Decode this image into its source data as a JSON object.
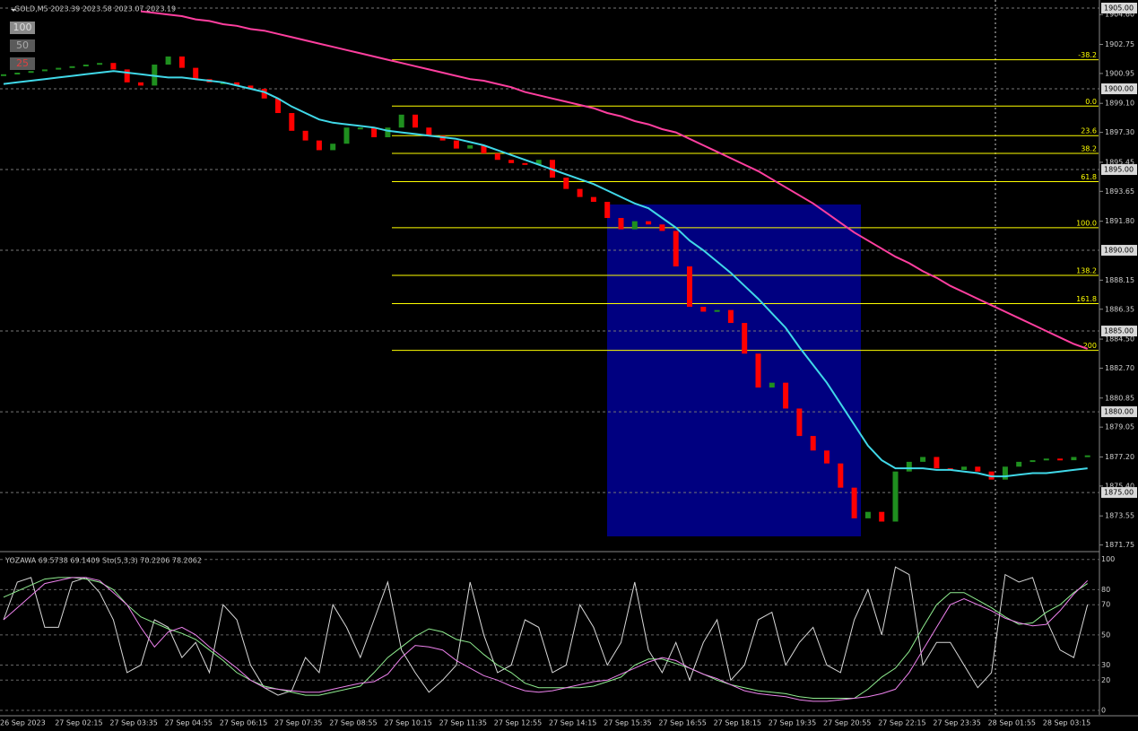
{
  "chart_data": [
    {
      "type": "price",
      "title": "GOLD,M5  2023.39 2023.58 2023.07 2023.19",
      "scale_buttons": [
        "100",
        "50",
        "25"
      ],
      "categories": [
        "26 Sep 2023",
        null,
        null,
        null,
        "27 Sep 02:15",
        null,
        null,
        null,
        "27 Sep 03:35",
        null,
        null,
        null,
        "27 Sep 04:55",
        null,
        null,
        null,
        "27 Sep 06:15",
        null,
        null,
        null,
        "27 Sep 07:35",
        null,
        null,
        null,
        "27 Sep 08:55",
        null,
        null,
        null,
        "27 Sep 10:15",
        null,
        null,
        null,
        "27 Sep 11:35",
        null,
        null,
        null,
        "27 Sep 12:55",
        null,
        null,
        null,
        "27 Sep 14:15",
        null,
        null,
        null,
        "27 Sep 15:35",
        null,
        null,
        null,
        "27 Sep 16:55",
        null,
        null,
        null,
        "27 Sep 18:15",
        null,
        null,
        null,
        "27 Sep 19:35",
        null,
        null,
        null,
        "27 Sep 20:55",
        null,
        null,
        null,
        "27 Sep 22:15",
        null,
        null,
        null,
        "27 Sep 23:35",
        null,
        null,
        null,
        "28 Sep 01:55",
        null,
        null,
        null,
        "28 Sep 03:15",
        null,
        null,
        null
      ],
      "ylim": [
        1871.45,
        1905.5
      ],
      "yticks": [
        {
          "value": 1904.6,
          "label": "1904.60"
        },
        {
          "value": 1902.75,
          "label": "1902.75"
        },
        {
          "value": 1900.95,
          "label": "1900.95"
        },
        {
          "value": 1899.1,
          "label": "1899.10"
        },
        {
          "value": 1897.3,
          "label": "1897.30"
        },
        {
          "value": 1895.45,
          "label": "1895.45"
        },
        {
          "value": 1893.65,
          "label": "1893.65"
        },
        {
          "value": 1891.8,
          "label": "1891.80"
        },
        {
          "value": 1888.15,
          "label": "1888.15"
        },
        {
          "value": 1886.35,
          "label": "1886.35"
        },
        {
          "value": 1884.5,
          "label": "1884.50"
        },
        {
          "value": 1882.7,
          "label": "1882.70"
        },
        {
          "value": 1880.85,
          "label": "1880.85"
        },
        {
          "value": 1879.05,
          "label": "1879.05"
        },
        {
          "value": 1877.2,
          "label": "1877.20"
        },
        {
          "value": 1875.4,
          "label": "1875.40"
        },
        {
          "value": 1873.55,
          "label": "1873.55"
        },
        {
          "value": 1871.75,
          "label": "1871.75"
        }
      ],
      "level_lines": [
        {
          "value": 1905,
          "label": "1905.00"
        },
        {
          "value": 1900,
          "label": "1900.00"
        },
        {
          "value": 1895,
          "label": "1895.00"
        },
        {
          "value": 1890,
          "label": "1890.00"
        },
        {
          "value": 1885,
          "label": "1885.00"
        },
        {
          "value": 1880,
          "label": "1880.00"
        },
        {
          "value": 1875,
          "label": "1875.00"
        }
      ],
      "fib_levels": [
        {
          "ratio_label": "-38.2",
          "price": 1901.8
        },
        {
          "ratio_label": "0.0",
          "price": 1898.93
        },
        {
          "ratio_label": "23.6",
          "price": 1897.1
        },
        {
          "ratio_label": "38.2",
          "price": 1896.0
        },
        {
          "ratio_label": "61.8",
          "price": 1894.25
        },
        {
          "ratio_label": "100.0",
          "price": 1891.4
        },
        {
          "ratio_label": "138.2",
          "price": 1888.45
        },
        {
          "ratio_label": "161.8",
          "price": 1886.7
        },
        {
          "ratio_label": "200",
          "price": 1883.8
        }
      ],
      "fib_color": "#ffff00",
      "series": [
        {
          "style": "bars",
          "up_color": "#1f8f1f",
          "down_color": "#ff0000",
          "values": [
            1900.9,
            1901.0,
            1901.1,
            1901.2,
            1901.3,
            1901.4,
            1901.5,
            1901.6,
            1901.2,
            1900.4,
            1900.2,
            1901.5,
            1902.0,
            1901.3,
            1900.6,
            1900.4,
            1900.4,
            1900.2,
            1900.0,
            1899.4,
            1898.5,
            1897.4,
            1896.8,
            1896.2,
            1896.6,
            1897.6,
            1897.6,
            1897.0,
            1897.6,
            1898.4,
            1897.6,
            1897.1,
            1896.8,
            1896.3,
            1896.5,
            1896.0,
            1895.6,
            1895.4,
            1895.3,
            1895.6,
            1894.5,
            1893.8,
            1893.3,
            1893.0,
            1892.0,
            1891.3,
            1891.8,
            1891.6,
            1891.2,
            1889.0,
            1886.5,
            1886.2,
            1886.3,
            1885.5,
            1883.6,
            1881.5,
            1881.8,
            1880.2,
            1878.5,
            1877.6,
            1876.8,
            1875.3,
            1873.4,
            1873.8,
            1873.2,
            1876.3,
            1876.9,
            1877.2,
            1876.5,
            1876.4,
            1876.6,
            1876.3,
            1875.8,
            1876.6,
            1876.9,
            1877.0,
            1877.1,
            1877.0,
            1877.2,
            1877.3
          ]
        },
        {
          "style": "line",
          "color": "#40d8e8",
          "values": [
            1900.3,
            1900.4,
            1900.5,
            1900.6,
            1900.7,
            1900.8,
            1900.9,
            1901.0,
            1901.1,
            1901.0,
            1900.9,
            1900.8,
            1900.7,
            1900.7,
            1900.6,
            1900.5,
            1900.4,
            1900.2,
            1900.0,
            1899.8,
            1899.4,
            1898.9,
            1898.5,
            1898.1,
            1897.9,
            1897.8,
            1897.7,
            1897.6,
            1897.4,
            1897.3,
            1897.2,
            1897.1,
            1897.0,
            1896.9,
            1896.7,
            1896.5,
            1896.2,
            1895.9,
            1895.6,
            1895.3,
            1895.0,
            1894.7,
            1894.4,
            1894.1,
            1893.7,
            1893.3,
            1892.9,
            1892.6,
            1892.0,
            1891.4,
            1890.6,
            1890.0,
            1889.3,
            1888.6,
            1887.8,
            1887.0,
            1886.1,
            1885.2,
            1884.0,
            1882.9,
            1881.8,
            1880.5,
            1879.2,
            1877.9,
            1877.0,
            1876.5,
            1876.5,
            1876.5,
            1876.4,
            1876.4,
            1876.3,
            1876.2,
            1876.0,
            1876.0,
            1876.1,
            1876.2,
            1876.2,
            1876.3,
            1876.4,
            1876.5
          ]
        },
        {
          "style": "line",
          "color": "#ff3f9f",
          "values": [
            null,
            null,
            null,
            null,
            null,
            null,
            null,
            null,
            null,
            null,
            1904.8,
            1904.7,
            1904.6,
            1904.5,
            1904.3,
            1904.2,
            1904.0,
            1903.9,
            1903.7,
            1903.6,
            1903.4,
            1903.2,
            1903.0,
            1902.8,
            1902.6,
            1902.4,
            1902.2,
            1902.0,
            1901.8,
            1901.6,
            1901.4,
            1901.2,
            1901.0,
            1900.8,
            1900.6,
            1900.5,
            1900.3,
            1900.1,
            1899.8,
            1899.6,
            1899.4,
            1899.2,
            1899.0,
            1898.8,
            1898.5,
            1898.3,
            1898.0,
            1897.8,
            1897.5,
            1897.3,
            1896.9,
            1896.5,
            1896.1,
            1895.7,
            1895.3,
            1894.9,
            1894.4,
            1893.9,
            1893.4,
            1892.9,
            1892.3,
            1891.7,
            1891.1,
            1890.6,
            1890.1,
            1889.6,
            1889.2,
            1888.7,
            1888.3,
            1887.8,
            1887.4,
            1887.0,
            1886.6,
            1886.2,
            1885.8,
            1885.4,
            1885.0,
            1884.6,
            1884.2,
            1883.9
          ]
        }
      ]
    },
    {
      "type": "oscillator",
      "title": "YOZAWA 69.5738 69.1409  Sto(5,3,3) 70.2206 78.2062",
      "ylim": [
        -3,
        104
      ],
      "yticks": [
        100,
        80,
        70,
        50,
        30,
        20,
        0
      ],
      "grid": true,
      "series": [
        {
          "color": "#d8d8d8",
          "values": [
            60,
            85,
            88,
            55,
            55,
            85,
            88,
            78,
            60,
            25,
            30,
            60,
            55,
            35,
            45,
            25,
            70,
            60,
            30,
            15,
            10,
            13,
            35,
            25,
            70,
            55,
            35,
            60,
            85,
            40,
            25,
            12,
            20,
            30,
            85,
            50,
            25,
            30,
            60,
            55,
            25,
            30,
            70,
            55,
            30,
            45,
            85,
            40,
            25,
            45,
            20,
            45,
            60,
            20,
            30,
            60,
            65,
            30,
            45,
            55,
            30,
            25,
            60,
            80,
            50,
            95,
            90,
            30,
            45,
            45,
            30,
            15,
            25,
            90,
            85,
            88,
            60,
            40,
            35,
            70
          ]
        },
        {
          "color": "#90ee90",
          "values": [
            75,
            79,
            83,
            87,
            88,
            88,
            87,
            85,
            80,
            70,
            62,
            58,
            54,
            51,
            47,
            40,
            33,
            25,
            20,
            16,
            14,
            12,
            10,
            10,
            12,
            14,
            16,
            25,
            35,
            42,
            49,
            54,
            52,
            47,
            45,
            37,
            30,
            25,
            18,
            15,
            15,
            15,
            15,
            16,
            19,
            22,
            30,
            34,
            34,
            31,
            28,
            24,
            20,
            17,
            15,
            13,
            12,
            11,
            9,
            8,
            8,
            8,
            8,
            14,
            22,
            28,
            39,
            55,
            70,
            78,
            78,
            73,
            68,
            62,
            57,
            58,
            65,
            70,
            78,
            84
          ]
        },
        {
          "color": "#ee82ee",
          "values": [
            60,
            68,
            76,
            84,
            86,
            88,
            88,
            86,
            78,
            70,
            55,
            42,
            52,
            55,
            50,
            42,
            35,
            28,
            20,
            15,
            14,
            13,
            12,
            12,
            14,
            16,
            18,
            19,
            24,
            35,
            43,
            42,
            40,
            33,
            28,
            23,
            20,
            16,
            13,
            12,
            13,
            15,
            17,
            19,
            20,
            24,
            28,
            32,
            35,
            33,
            28,
            24,
            21,
            17,
            13,
            11,
            10,
            9,
            7,
            6,
            6,
            7,
            8,
            9,
            11,
            14,
            25,
            40,
            55,
            70,
            74,
            70,
            66,
            61,
            58,
            56,
            57,
            66,
            77,
            86
          ]
        }
      ]
    }
  ]
}
